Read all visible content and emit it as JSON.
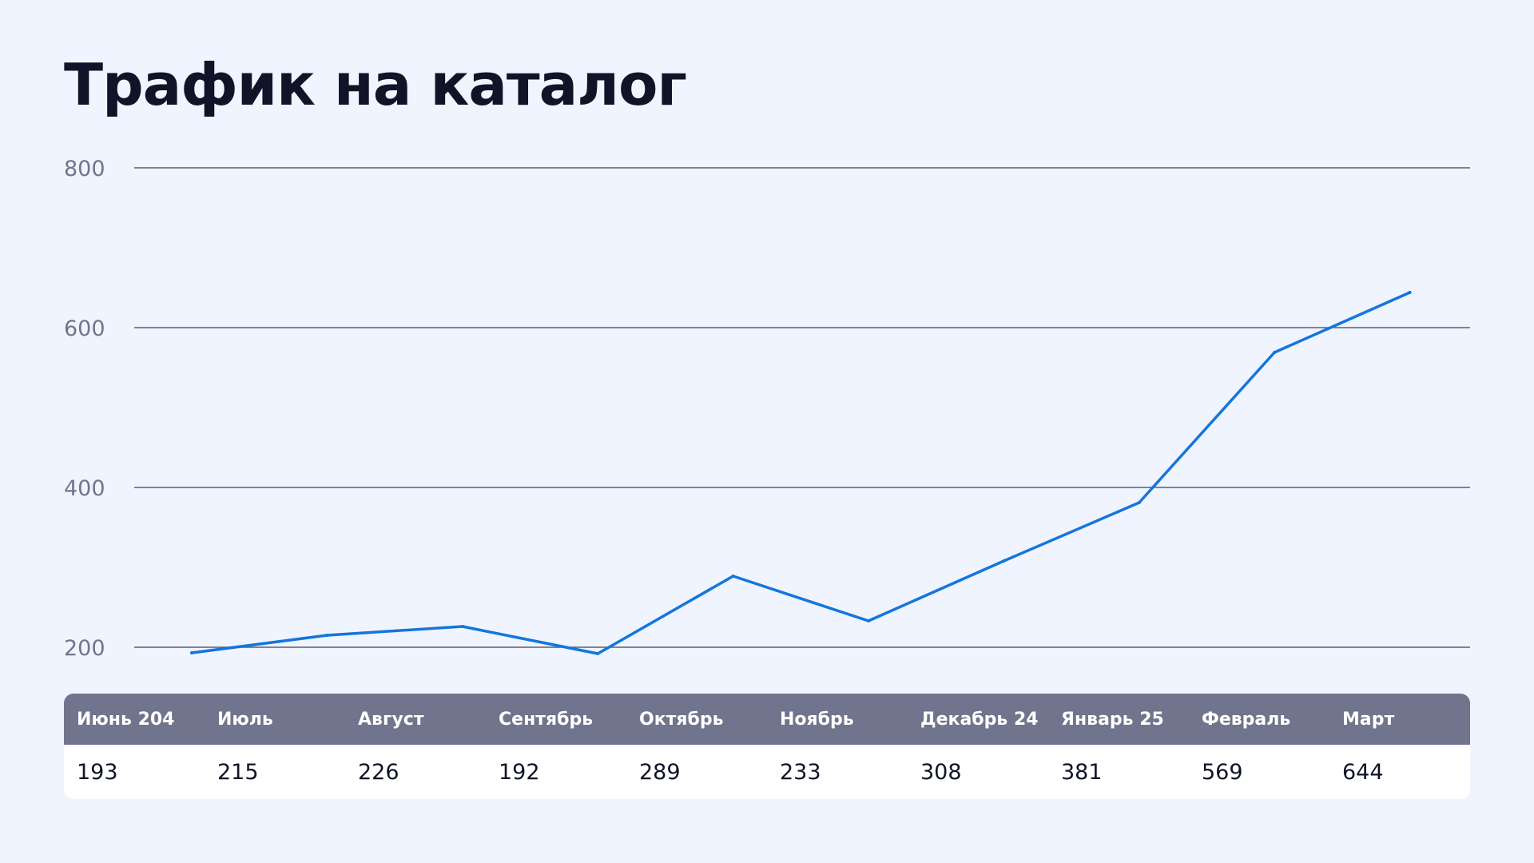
{
  "title": "Трафик на каталог",
  "colors": {
    "background": "#F0F4FF",
    "line": "#1476DB",
    "grid": "#5A5E70",
    "tick_label": "#70748C",
    "table_header_bg": "#70748C",
    "table_header_text": "#FFFFFF",
    "table_body_bg": "#FFFFFF",
    "title": "#0F1428"
  },
  "chart_data": {
    "type": "line",
    "title": "Трафик на каталог",
    "categories": [
      "Июнь 204",
      "Июль",
      "Август",
      "Сентябрь",
      "Октябрь",
      "Ноябрь",
      "Декабрь 24",
      "Январь 25",
      "Февраль",
      "Март"
    ],
    "series": [
      {
        "values": [
          193,
          215,
          226,
          192,
          289,
          233,
          308,
          381,
          569,
          644
        ]
      }
    ],
    "ylim": [
      200,
      800
    ],
    "yticks": [
      "200",
      "400",
      "600",
      "800"
    ],
    "grid": true,
    "legend": "none"
  },
  "table": {
    "headers": [
      "Июнь 204",
      "Июль",
      "Август",
      "Сентябрь",
      "Октябрь",
      "Ноябрь",
      "Декабрь 24",
      "Январь 25",
      "Февраль",
      "Март"
    ],
    "values": [
      "193",
      "215",
      "226",
      "192",
      "289",
      "233",
      "308",
      "381",
      "569",
      "644"
    ]
  }
}
